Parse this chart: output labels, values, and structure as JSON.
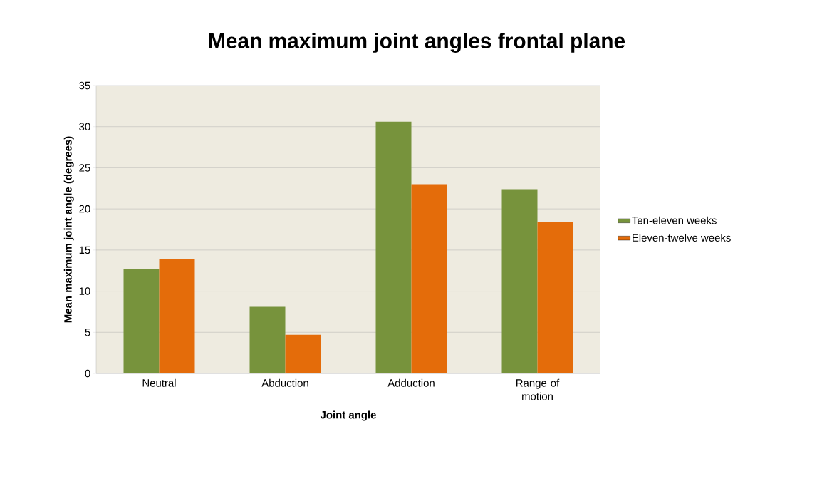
{
  "chart_data": {
    "type": "bar",
    "title": "Mean maximum joint angles frontal plane",
    "xlabel": "Joint angle",
    "ylabel": "Mean maximum joint angle (degrees)",
    "categories": [
      "Neutral",
      "Abduction",
      "Adduction",
      "Range of motion"
    ],
    "series": [
      {
        "name": "Ten-eleven weeks",
        "color": "#77933c",
        "values": [
          12.7,
          8.1,
          30.6,
          22.4
        ]
      },
      {
        "name": "Eleven-twelve weeks",
        "color": "#e46c0a",
        "values": [
          13.9,
          4.7,
          23.0,
          18.4
        ]
      }
    ],
    "ylim": [
      0,
      35
    ],
    "yticks": [
      0,
      5,
      10,
      15,
      20,
      25,
      30,
      35
    ],
    "grid": "y",
    "legend": "right"
  }
}
